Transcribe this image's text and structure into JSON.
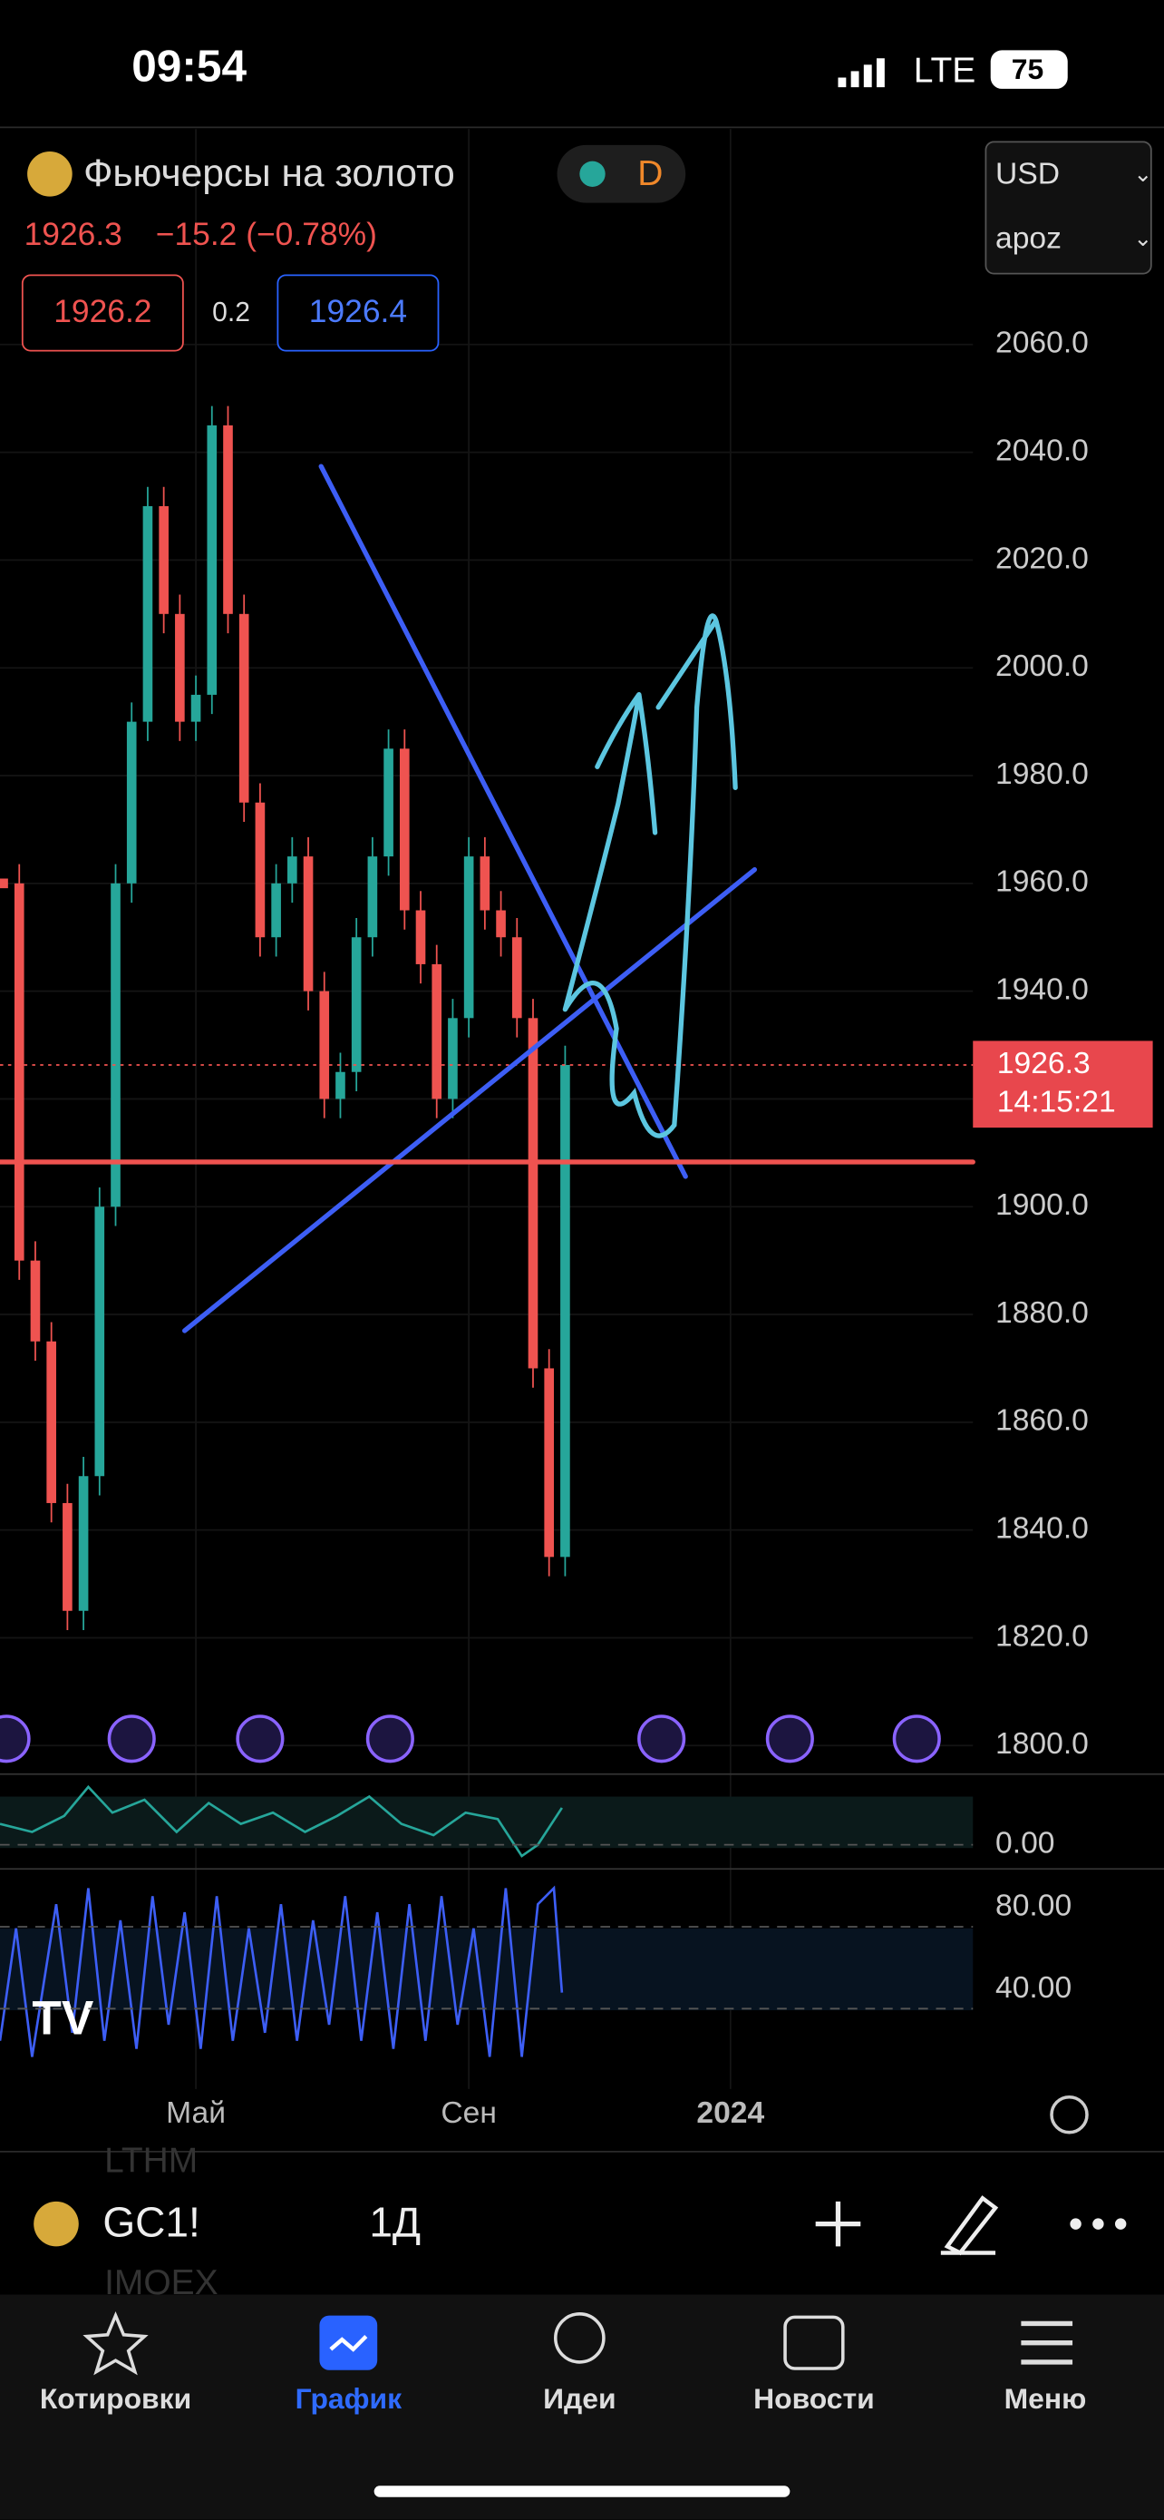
{
  "status_bar": {
    "time": "09:54",
    "network": "LTE",
    "battery": "75"
  },
  "header": {
    "symbol_name": "Фьючерсы на золото",
    "interval_badge": "D",
    "currency": "USD",
    "account": "apoz",
    "last": "1926.3",
    "change": "−15.2 (−0.78%)",
    "bid": "1926.2",
    "spread": "0.2",
    "ask": "1926.4"
  },
  "chart_data": {
    "type": "candlestick",
    "values": [
      1960,
      1890,
      1875,
      1845,
      1825,
      1850,
      1900,
      1960,
      1990,
      2030,
      2010,
      1990,
      1995,
      2045,
      2010,
      1975,
      1950,
      1960,
      1965,
      1940,
      1920,
      1925,
      1950,
      1965,
      1985,
      1955,
      1945,
      1920,
      1935,
      1965,
      1955,
      1950,
      1935,
      1870,
      1835,
      1926.3
    ],
    "ylim": [
      1795,
      2100
    ],
    "yticks": [
      {
        "value": 1800,
        "label": "1800.0"
      },
      {
        "value": 1820,
        "label": "1820.0"
      },
      {
        "value": 1840,
        "label": "1840.0"
      },
      {
        "value": 1860,
        "label": "1860.0"
      },
      {
        "value": 1880,
        "label": "1880.0"
      },
      {
        "value": 1900,
        "label": "1900.0"
      },
      {
        "value": 1920,
        "label": "1920.0"
      },
      {
        "value": 1940,
        "label": "1940.0"
      },
      {
        "value": 1960,
        "label": "1960.0"
      },
      {
        "value": 1980,
        "label": "1980.0"
      },
      {
        "value": 2000,
        "label": "2000.0"
      },
      {
        "value": 2020,
        "label": "2020.0"
      },
      {
        "value": 2040,
        "label": "2040.0"
      },
      {
        "value": 2060,
        "label": "2060.0"
      }
    ],
    "x_labels": [
      "Май",
      "Сен",
      "2024"
    ],
    "price_tag": {
      "value": 1926.3,
      "time": "14:15:21"
    },
    "osc1_ticks": [
      {
        "value": 0,
        "label": "0.00"
      }
    ],
    "osc2_ticks": [
      {
        "value": 80,
        "label": "80.00"
      },
      {
        "value": 40,
        "label": "40.00"
      }
    ]
  },
  "toolbar": {
    "symbol": "GC1!",
    "interval": "1Д"
  },
  "background_list": [
    "LTHM",
    "IMOEX"
  ],
  "tabs": [
    "Котировки",
    "График",
    "Идеи",
    "Новости",
    "Меню"
  ]
}
